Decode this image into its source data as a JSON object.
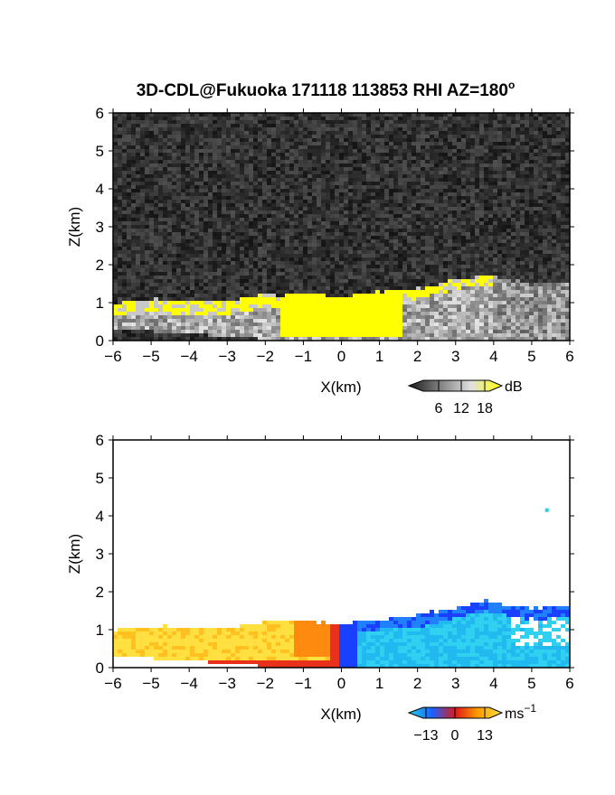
{
  "title": "3D-CDL@Fukuoka 171118 113853 RHI AZ=180",
  "title_superscript": "o",
  "chart_data": [
    {
      "type": "heatmap",
      "name": "backscatter",
      "xlabel": "X(km)",
      "ylabel": "Z(km)",
      "xlim": [
        -6,
        6
      ],
      "ylim": [
        0,
        6
      ],
      "xticks": [
        "−6",
        "−5",
        "−4",
        "−3",
        "−2",
        "−1",
        "0",
        "1",
        "2",
        "3",
        "4",
        "5",
        "6"
      ],
      "yticks": [
        "0",
        "1",
        "2",
        "3",
        "4",
        "5",
        "6"
      ],
      "colorbar": {
        "unit": "dB",
        "ticks": [
          "6",
          "12",
          "18"
        ],
        "colors": [
          "#1a1a1a",
          "#808080",
          "#e0e0e0",
          "#ffff00"
        ]
      },
      "background_color": "#2b2b2b",
      "layer_top_km": [
        [
          -6,
          1.0
        ],
        [
          -5,
          1.08
        ],
        [
          -4,
          1.05
        ],
        [
          -3,
          1.05
        ],
        [
          -2,
          1.2
        ],
        [
          -1,
          1.25
        ],
        [
          0,
          1.12
        ],
        [
          1,
          1.3
        ],
        [
          2,
          1.35
        ],
        [
          3,
          1.6
        ],
        [
          3.8,
          1.72
        ],
        [
          4.5,
          1.6
        ],
        [
          5,
          1.5
        ],
        [
          5.5,
          1.55
        ],
        [
          6,
          1.6
        ]
      ],
      "layer_colors": {
        "saturated": "#ffff00",
        "moderate": "#c8c8c8",
        "weak": "#8c8c8c"
      }
    },
    {
      "type": "heatmap",
      "name": "doppler_velocity",
      "xlabel": "X(km)",
      "ylabel": "Z(km)",
      "xlim": [
        -6,
        6
      ],
      "ylim": [
        0,
        6
      ],
      "xticks": [
        "−6",
        "−5",
        "−4",
        "−3",
        "−2",
        "−1",
        "0",
        "1",
        "2",
        "3",
        "4",
        "5",
        "6"
      ],
      "yticks": [
        "0",
        "1",
        "2",
        "3",
        "4",
        "5",
        "6"
      ],
      "colorbar": {
        "unit": "ms",
        "unit_superscript": "−1",
        "ticks": [
          "−13",
          "0",
          "13"
        ],
        "colors": [
          "#22d3e6",
          "#1a60ff",
          "#dd1a1a",
          "#ffa000",
          "#ffe040"
        ]
      },
      "background_color": "#ffffff",
      "layer_top_km": [
        [
          -6,
          1.0
        ],
        [
          -5,
          1.08
        ],
        [
          -4,
          1.05
        ],
        [
          -3,
          1.05
        ],
        [
          -2,
          1.2
        ],
        [
          -1,
          1.25
        ],
        [
          0,
          1.12
        ],
        [
          1,
          1.3
        ],
        [
          2,
          1.35
        ],
        [
          3,
          1.6
        ],
        [
          3.8,
          1.8
        ],
        [
          4.5,
          1.65
        ],
        [
          5,
          1.55
        ],
        [
          5.5,
          1.6
        ],
        [
          6,
          1.6
        ]
      ],
      "approaching_side_colors": [
        "#ffe040",
        "#ffc020",
        "#ff8a10",
        "#e8301a"
      ],
      "receding_side_colors": [
        "#1a40ff",
        "#2080ff",
        "#22b8f0",
        "#30d0f0"
      ],
      "isolated_echo": {
        "x": 5.4,
        "z": 4.15,
        "color": "#22d3e6"
      }
    }
  ]
}
